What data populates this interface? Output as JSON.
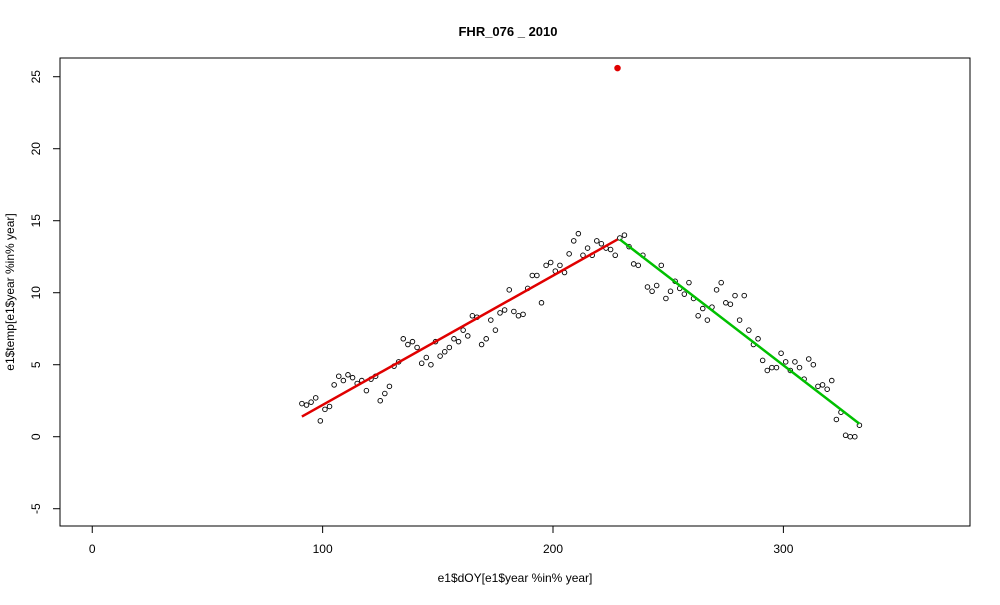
{
  "chart_data": {
    "type": "scatter",
    "title": "FHR_076 _ 2010",
    "x_label": "e1$dOY[e1$year %in% year]",
    "y_label": "e1$temp[e1$year %in% year]",
    "xlim": [
      -14,
      381
    ],
    "ylim": [
      -6.2,
      26.3
    ],
    "xticks": [
      0,
      100,
      200,
      300
    ],
    "yticks": [
      -5,
      0,
      5,
      10,
      15,
      20,
      25
    ],
    "series": [
      {
        "type": "scatter",
        "color": "#000000",
        "x": [
          91,
          93,
          95,
          97,
          99,
          101,
          103,
          105,
          107,
          109,
          111,
          113,
          115,
          117,
          119,
          121,
          123,
          125,
          127,
          129,
          131,
          133,
          135,
          137,
          139,
          141,
          143,
          145,
          147,
          149,
          151,
          153,
          155,
          157,
          159,
          161,
          163,
          165,
          167,
          169,
          171,
          173,
          175,
          177,
          179,
          181,
          183,
          185,
          187,
          189,
          191,
          193,
          195,
          197,
          199,
          201,
          203,
          205,
          207,
          209,
          211,
          213,
          215,
          217,
          219,
          221,
          223,
          225,
          227,
          229,
          231,
          233,
          235,
          237,
          239,
          241,
          243,
          245,
          247,
          249,
          251,
          253,
          255,
          257,
          259,
          261,
          263,
          265,
          267,
          269,
          271,
          273,
          275,
          277,
          279,
          281,
          283,
          285,
          287,
          289,
          291,
          293,
          295,
          297,
          299,
          301,
          303,
          305,
          307,
          309,
          311,
          313,
          315,
          317,
          319,
          321,
          323,
          325,
          327,
          329,
          331,
          333
        ],
        "values": [
          2.3,
          2.2,
          2.4,
          2.7,
          1.1,
          1.9,
          2.1,
          3.6,
          4.2,
          3.9,
          4.3,
          4.1,
          3.7,
          3.9,
          3.2,
          4.0,
          4.2,
          2.5,
          3.0,
          3.5,
          4.9,
          5.2,
          6.8,
          6.4,
          6.6,
          6.2,
          5.1,
          5.5,
          5.0,
          6.6,
          5.6,
          5.9,
          6.2,
          6.8,
          6.6,
          7.4,
          7.0,
          8.4,
          8.3,
          6.4,
          6.8,
          8.1,
          7.4,
          8.6,
          8.8,
          10.2,
          8.7,
          8.4,
          8.5,
          10.3,
          11.2,
          11.2,
          9.3,
          11.9,
          12.1,
          11.5,
          11.9,
          11.4,
          12.7,
          13.6,
          14.1,
          12.6,
          13.1,
          12.6,
          13.6,
          13.4,
          13.1,
          13.0,
          12.6,
          13.8,
          14.0,
          13.2,
          12.0,
          11.9,
          12.6,
          10.4,
          10.1,
          10.5,
          11.9,
          9.6,
          10.1,
          10.8,
          10.3,
          9.9,
          10.7,
          9.6,
          8.4,
          8.9,
          8.1,
          9.0,
          10.2,
          10.7,
          9.3,
          9.2,
          9.8,
          8.1,
          9.8,
          7.4,
          6.4,
          6.8,
          5.3,
          4.6,
          4.8,
          4.8,
          5.8,
          5.2,
          4.6,
          5.2,
          4.8,
          4.0,
          5.4,
          5.0,
          3.5,
          3.6,
          3.3,
          3.9,
          1.2,
          1.7,
          0.1,
          0.0,
          0.0,
          0.8
        ]
      },
      {
        "type": "line",
        "color": "#e00000",
        "x": [
          91,
          228
        ],
        "values": [
          1.4,
          13.7
        ]
      },
      {
        "type": "line",
        "color": "#00c000",
        "x": [
          229,
          333
        ],
        "values": [
          13.7,
          0.9
        ]
      },
      {
        "type": "point",
        "color": "#e00000",
        "x": [
          228
        ],
        "values": [
          25.6
        ]
      }
    ]
  }
}
